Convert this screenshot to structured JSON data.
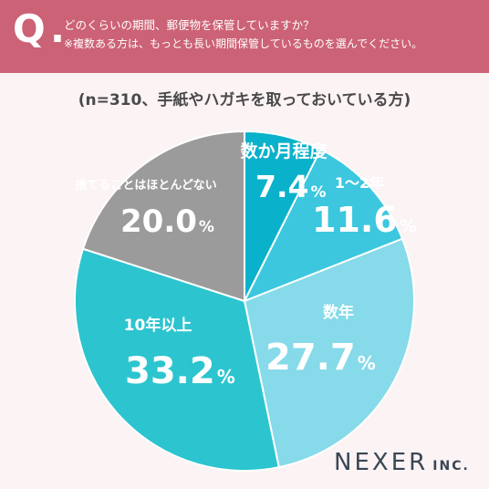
{
  "question": {
    "mark": "Q",
    "mark_dot": ".",
    "line1": "どのくらいの期間、郵便物を保管していますか？",
    "line2": "※複数ある方は、もっとも長い期間保管しているものを選んでください。"
  },
  "subtitle": "(n=310、手紙やハガキを取っておいている方)",
  "chart_data": {
    "type": "pie",
    "title": "",
    "slices": [
      {
        "label": "数か月程度",
        "value": 7.4,
        "value_text": "7.4",
        "color": "#0ab1ca"
      },
      {
        "label": "1〜2年",
        "value": 11.6,
        "value_text": "11.6",
        "color": "#3cc7df"
      },
      {
        "label": "数年",
        "value": 27.7,
        "value_text": "27.7",
        "color": "#86dae9"
      },
      {
        "label": "10年以上",
        "value": 33.2,
        "value_text": "33.2",
        "color": "#2cc5cf"
      },
      {
        "label": "捨てることはほとんどない",
        "value": 20.0,
        "value_text": "20.0",
        "color": "#9b9b9b"
      }
    ],
    "unit": "%",
    "start": "12 o'clock",
    "direction": "clockwise"
  },
  "logo": {
    "main": "NEXER",
    "sub": "INC."
  }
}
